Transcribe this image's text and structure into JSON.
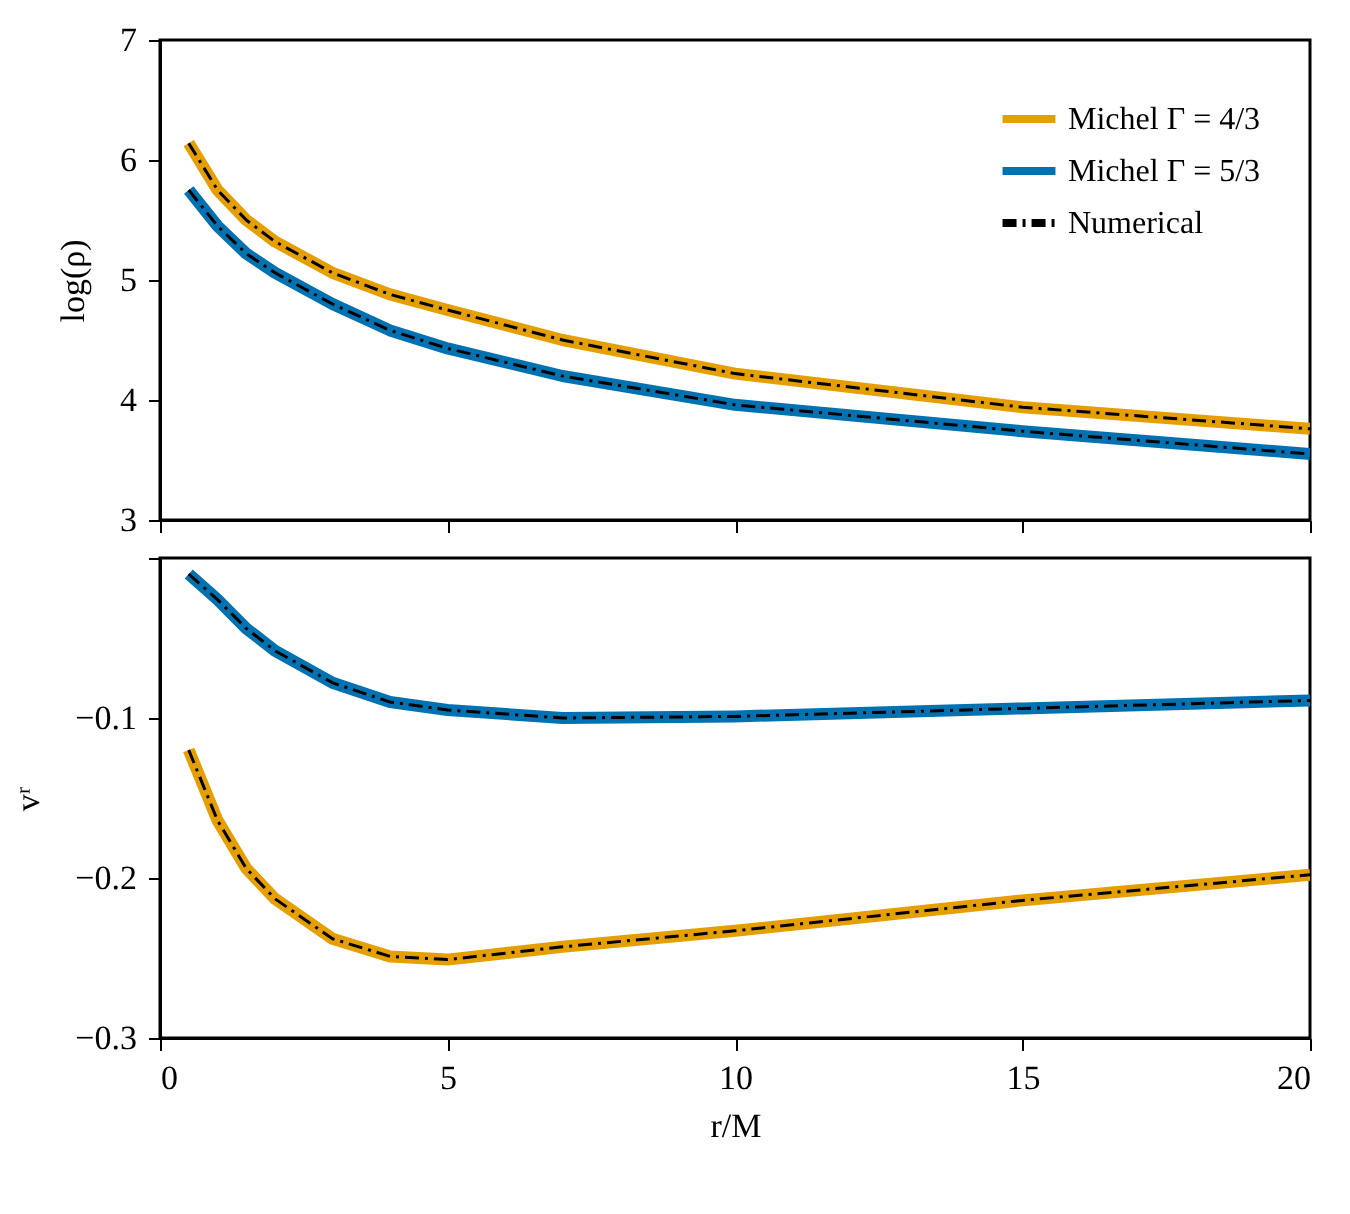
{
  "chart_data": [
    {
      "type": "line",
      "ylabel": "log(ρ)",
      "xlim": [
        0,
        20
      ],
      "xticks": [
        0,
        5,
        10,
        15,
        20
      ],
      "ylim": [
        3,
        7
      ],
      "yticks": [
        3,
        4,
        5,
        6,
        7
      ],
      "tick_labels": "y",
      "grid": false,
      "legend": "top right",
      "x": [
        0.5,
        1,
        1.5,
        2,
        3,
        4,
        5,
        7,
        10,
        15,
        20
      ],
      "series": [
        {
          "name": "Michel Γ = 4/3",
          "color": "#e69f00",
          "line_style": "solid",
          "values": [
            6.14,
            5.75,
            5.5,
            5.32,
            5.06,
            4.88,
            4.75,
            4.5,
            4.22,
            3.94,
            3.76
          ]
        },
        {
          "name": "Michel Γ = 5/3",
          "color": "#0072b2",
          "line_style": "solid",
          "values": [
            5.75,
            5.45,
            5.22,
            5.06,
            4.8,
            4.58,
            4.43,
            4.2,
            3.96,
            3.74,
            3.55
          ]
        },
        {
          "name": "Numerical",
          "color": "#000000",
          "line_style": "dashed",
          "values": [
            6.14,
            5.75,
            5.5,
            5.32,
            5.06,
            4.88,
            4.75,
            4.5,
            4.22,
            3.94,
            3.76
          ]
        },
        {
          "color": "#000000",
          "line_style": "dashed",
          "values": [
            5.75,
            5.45,
            5.22,
            5.06,
            4.8,
            4.58,
            4.43,
            4.2,
            3.96,
            3.74,
            3.55
          ]
        }
      ]
    },
    {
      "type": "line",
      "xlabel": "r/M",
      "ylabel": "vʳ",
      "xlim": [
        0,
        20
      ],
      "xticks": [
        0,
        5,
        10,
        15,
        20
      ],
      "ylim": [
        -0.3,
        0
      ],
      "yticks": [
        -0.3,
        -0.2,
        -0.1,
        {
          "value": 0,
          "label": null
        }
      ],
      "grid": false,
      "x": [
        0.5,
        1,
        1.5,
        2,
        3,
        4,
        5,
        7,
        10,
        15,
        20
      ],
      "series": [
        {
          "color": "#e69f00",
          "line_style": "solid",
          "values": [
            -0.12,
            -0.164,
            -0.194,
            -0.213,
            -0.238,
            -0.249,
            -0.251,
            -0.243,
            -0.233,
            -0.214,
            -0.198
          ]
        },
        {
          "color": "#0072b2",
          "line_style": "solid",
          "values": [
            -0.01,
            -0.026,
            -0.044,
            -0.058,
            -0.078,
            -0.09,
            -0.095,
            -0.1,
            -0.099,
            -0.094,
            -0.089
          ]
        },
        {
          "color": "#000000",
          "line_style": "dashed",
          "values": [
            -0.12,
            -0.164,
            -0.194,
            -0.213,
            -0.238,
            -0.249,
            -0.251,
            -0.243,
            -0.233,
            -0.214,
            -0.198
          ]
        },
        {
          "color": "#000000",
          "line_style": "dashed",
          "values": [
            -0.01,
            -0.026,
            -0.044,
            -0.058,
            -0.078,
            -0.09,
            -0.095,
            -0.1,
            -0.099,
            -0.094,
            -0.089
          ]
        }
      ]
    }
  ]
}
